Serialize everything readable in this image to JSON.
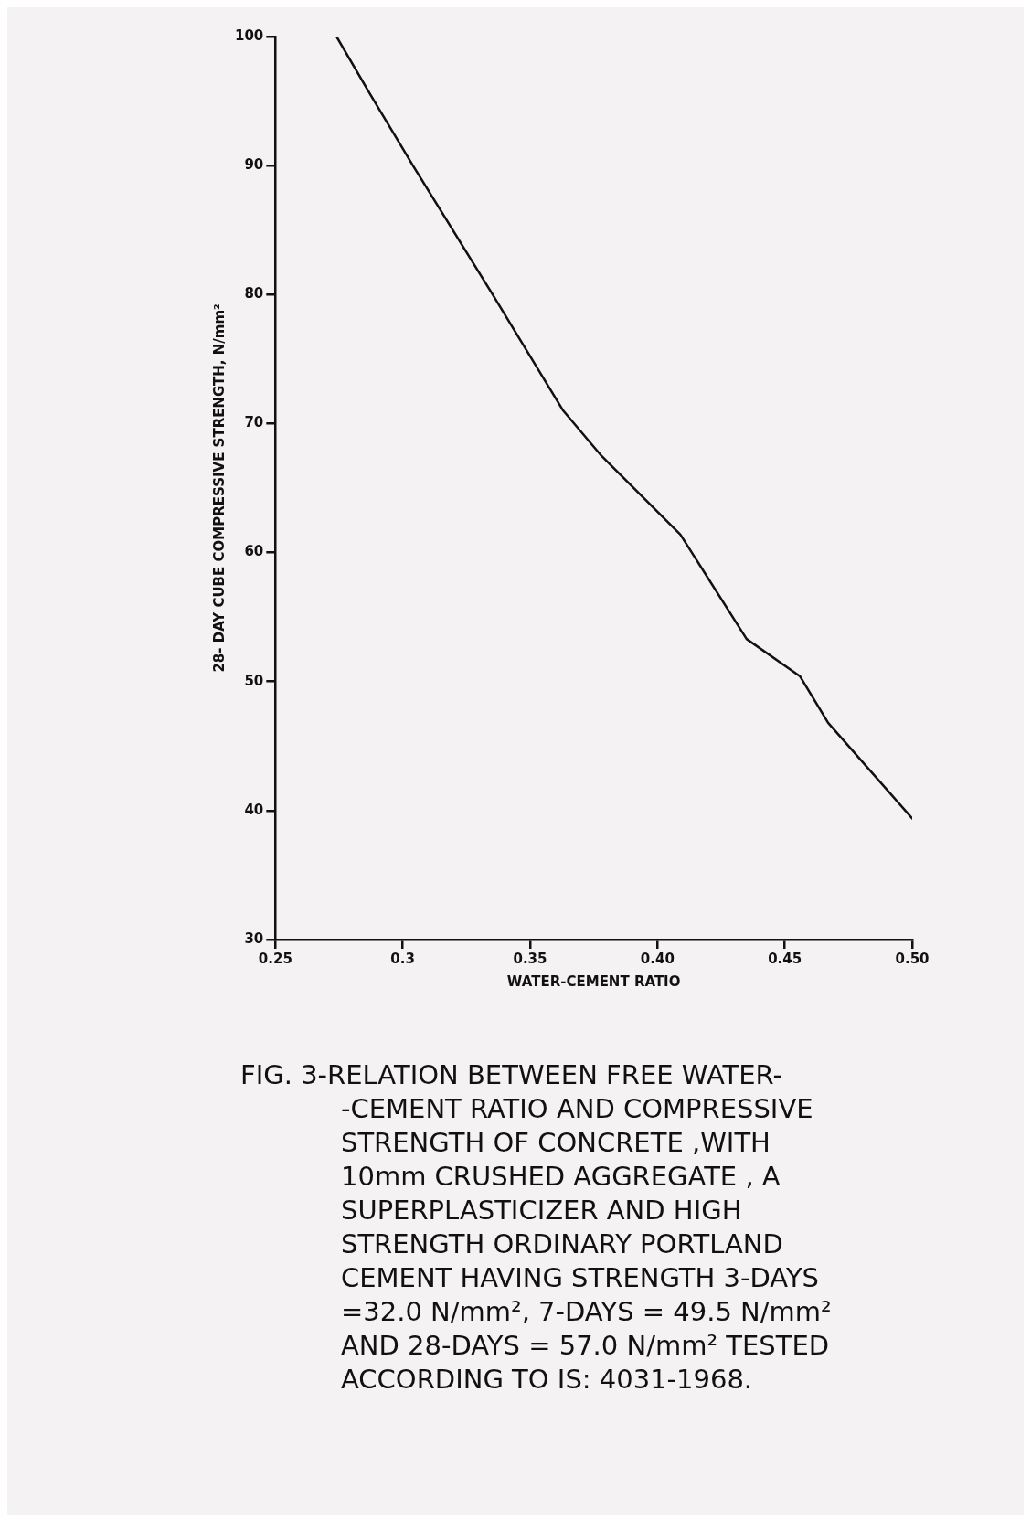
{
  "chart_data": {
    "type": "line",
    "xlabel": "WATER-CEMENT RATIO",
    "ylabel": "28- DAY CUBE COMPRESSIVE STRENGTH, N/mm²",
    "x": [
      0.274,
      0.287,
      0.304,
      0.335,
      0.363,
      0.378,
      0.409,
      0.435,
      0.456,
      0.467,
      0.5
    ],
    "series": [
      {
        "color": "#111111",
        "values": [
          100,
          95.6,
          90,
          80.1,
          71,
          67.5,
          61.4,
          53.3,
          50.4,
          46.8,
          39.4
        ]
      }
    ],
    "xlim": [
      0.25,
      0.5
    ],
    "xticks": [
      0.25,
      0.3,
      0.35,
      {
        "value": 0.4,
        "label": "0.40"
      },
      0.45,
      {
        "value": 0.5,
        "label": "0.50"
      }
    ],
    "ylim": [
      30,
      100
    ],
    "yticks": [
      30,
      40,
      50,
      60,
      70,
      80,
      90,
      100
    ],
    "grid": false,
    "legend": false,
    "marker": "none",
    "line_style": "solid",
    "annotations": [
      "FIG. 3-RELATION BETWEEN FREE WATER-\n-CEMENT RATIO AND COMPRESSIVE\nSTRENGTH OF CONCRETE ,WITH\n10mm CRUSHED AGGREGATE , A\nSUPERPLASTICIZER AND HIGH\nSTRENGTH ORDINARY PORTLAND\nCEMENT HAVING STRENGTH 3-DAYS\n=32.0 N/mm², 7-DAYS = 49.5 N/mm²\nAND 28-DAYS = 57.0 N/mm² TESTED\nACCORDING TO IS: 4031-1968."
    ]
  }
}
